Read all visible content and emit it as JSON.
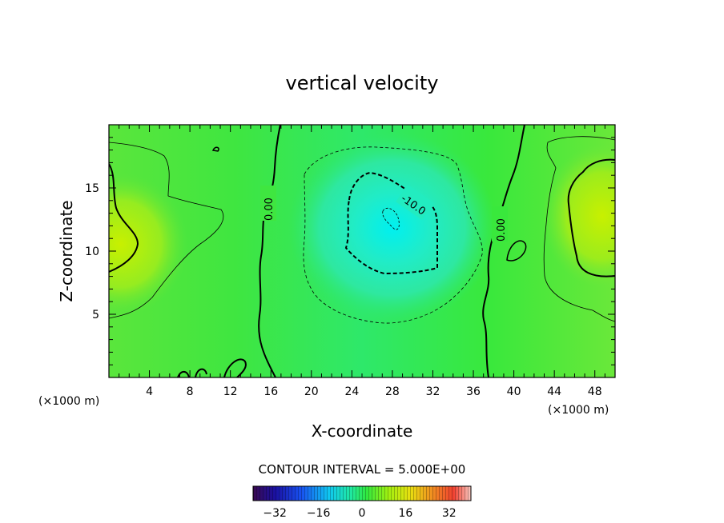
{
  "chart_data": {
    "type": "heatmap",
    "title": "vertical velocity",
    "xlabel": "X-coordinate",
    "ylabel": "Z-coordinate",
    "x_unit_left": "(×1000 m)",
    "x_unit_right": "(×1000 m)",
    "xlim": [
      0,
      50
    ],
    "ylim": [
      0,
      20
    ],
    "x_ticks": [
      "4",
      "8",
      "12",
      "16",
      "20",
      "24",
      "28",
      "32",
      "36",
      "40",
      "44",
      "48"
    ],
    "y_ticks": [
      "5",
      "10",
      "15"
    ],
    "contour_interval_label": "CONTOUR INTERVAL = 5.000E+00",
    "contour_labels": [
      "0.00",
      "-10.0",
      "0.00"
    ],
    "colorbar": {
      "range": [
        -40,
        40
      ],
      "ticks": [
        "-32",
        "-16",
        "0",
        "16",
        "32"
      ]
    },
    "colors": {
      "background_field": "#33e833",
      "updraft_max": "#b8f000",
      "downdraft_min": "#00e8e8"
    }
  }
}
